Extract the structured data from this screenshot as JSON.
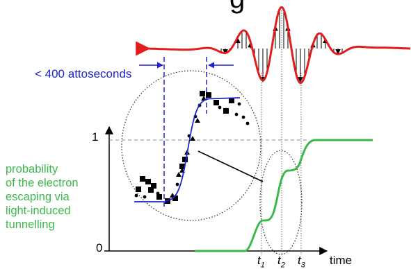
{
  "annotation": {
    "text": "< 400 attoseconds",
    "color": "#1f24c8"
  },
  "axis": {
    "y_tick_top": "1",
    "y_tick_bottom": "0",
    "x_label": "time",
    "t_labels": [
      {
        "base": "t",
        "sub": "1"
      },
      {
        "base": "t",
        "sub": "2"
      },
      {
        "base": "t",
        "sub": "3"
      }
    ]
  },
  "y_label": {
    "lines": [
      "probability",
      "of the electron",
      "escaping via",
      "light-induced",
      "tunnelling"
    ],
    "color": "#3cb84a"
  },
  "colors": {
    "pulse": "#e31d1d",
    "probability_curve": "#3cb84a",
    "fit_curve": "#1f24c8",
    "markers": "#000000",
    "dashed_guides": "#1f24c8"
  },
  "cropped_top_glyph": "g"
}
